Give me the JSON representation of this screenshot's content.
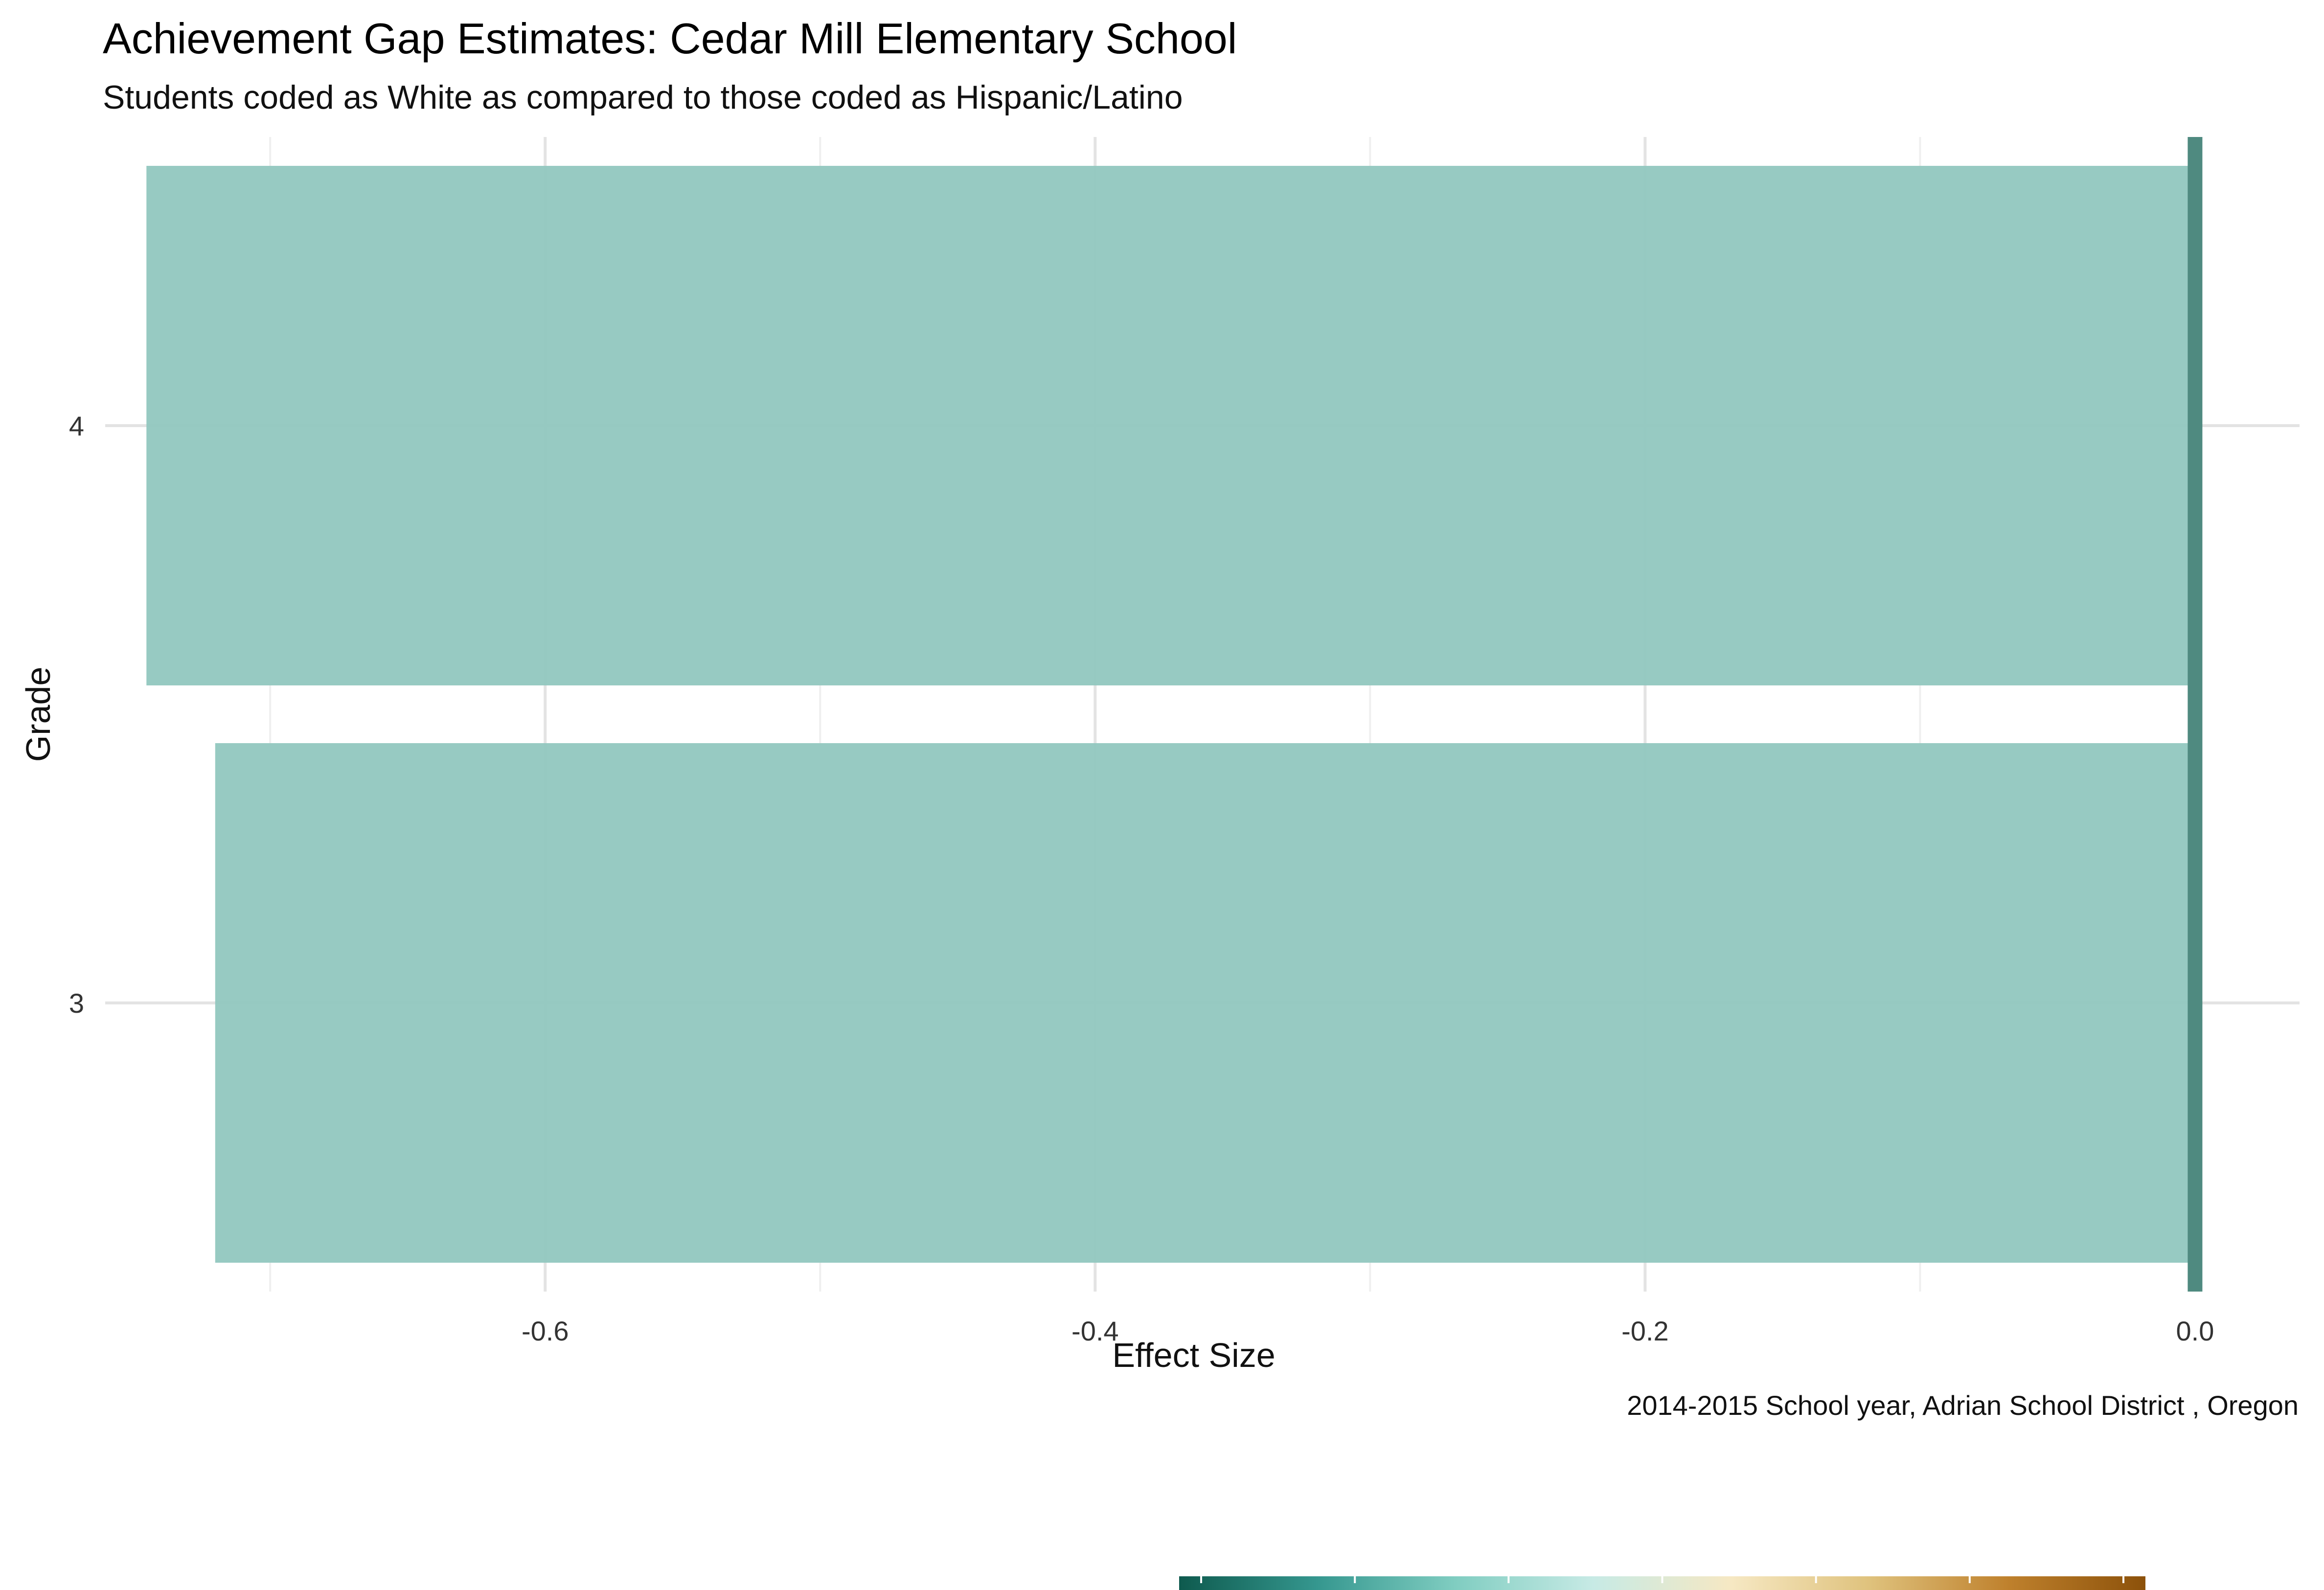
{
  "chart_data": {
    "type": "bar",
    "orientation": "horizontal",
    "title": "Achievement Gap Estimates: Cedar Mill Elementary School",
    "subtitle": "Students coded as White as compared to those coded as Hispanic/Latino",
    "caption": "2014-2015 School year,  Adrian School District , Oregon",
    "xlabel": "Effect Size",
    "ylabel": "Grade",
    "categories": [
      "3",
      "4"
    ],
    "values": [
      -0.72,
      -0.745
    ],
    "xlim": [
      -0.76,
      0.038
    ],
    "x_ticks": [
      -0.6,
      -0.4,
      -0.2,
      0.0
    ],
    "x_tick_labels": [
      "-0.6",
      "-0.4",
      "-0.2",
      "0.0"
    ],
    "reference_line": 0.0,
    "grid": true,
    "legend": "bottom",
    "colors": {
      "bar": "#91c7bf",
      "reference_line": "#4f8a80",
      "grid_major": "#e3e3e3",
      "grid_minor": "#efefef",
      "gradient": [
        "#0e5a4e",
        "#35978f",
        "#80cdc1",
        "#c7eae5",
        "#f6e8c3",
        "#dfc27d",
        "#bf812d",
        "#8c510a"
      ]
    }
  }
}
